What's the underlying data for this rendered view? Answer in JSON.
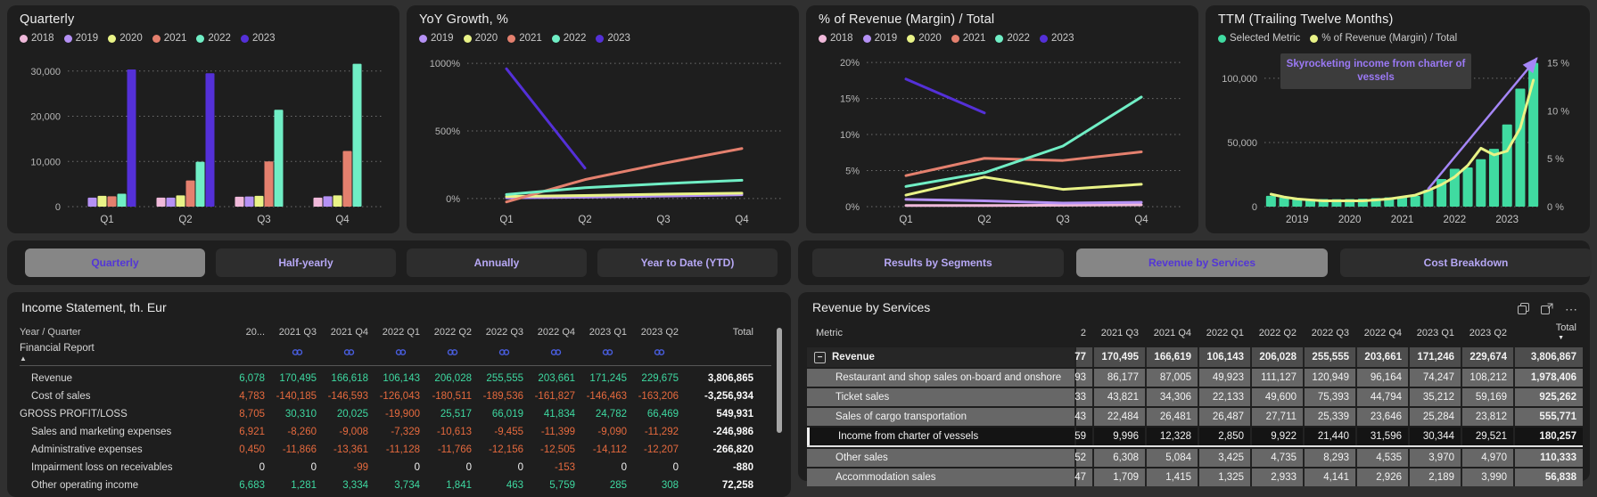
{
  "charts": {
    "quarterly": {
      "title": "Quarterly",
      "type": "grouped-bar",
      "categories": [
        "Q1",
        "Q2",
        "Q3",
        "Q4"
      ],
      "ymin": 0,
      "ymax": 33500,
      "yticks": [
        {
          "v": 0,
          "label": "0"
        },
        {
          "v": 10000,
          "label": "10,000"
        },
        {
          "v": 20000,
          "label": "20,000"
        },
        {
          "v": 30000,
          "label": "30,000"
        }
      ],
      "series": [
        {
          "name": "2018",
          "color": "#f0b9da",
          "values": [
            null,
            2000,
            2200,
            2000
          ]
        },
        {
          "name": "2019",
          "color": "#b591f5",
          "values": [
            2000,
            2000,
            2250,
            2300
          ]
        },
        {
          "name": "2020",
          "color": "#e9f387",
          "values": [
            2400,
            2500,
            2400,
            2500
          ]
        },
        {
          "name": "2021",
          "color": "#e4806e",
          "values": [
            2300,
            5800,
            9996,
            12328
          ]
        },
        {
          "name": "2022",
          "color": "#70eec5",
          "values": [
            2850,
            9922,
            21440,
            31596
          ]
        },
        {
          "name": "2023",
          "color": "#5430d8",
          "values": [
            30344,
            29521,
            null,
            null
          ]
        }
      ]
    },
    "yoy": {
      "title": "YoY Growth, %",
      "type": "line",
      "categories": [
        "Q1",
        "Q2",
        "Q3",
        "Q4"
      ],
      "ymin": -60,
      "ymax": 1060,
      "yticks": [
        {
          "v": 0,
          "label": "0%"
        },
        {
          "v": 500,
          "label": "500%"
        },
        {
          "v": 1000,
          "label": "1000%"
        }
      ],
      "series": [
        {
          "name": "2019",
          "color": "#b591f5",
          "values": [
            5,
            10,
            18,
            28
          ]
        },
        {
          "name": "2020",
          "color": "#e9f387",
          "values": [
            15,
            22,
            32,
            40
          ]
        },
        {
          "name": "2021",
          "color": "#e4806e",
          "values": [
            -25,
            140,
            260,
            370
          ]
        },
        {
          "name": "2022",
          "color": "#70eec5",
          "values": [
            30,
            80,
            110,
            135
          ]
        },
        {
          "name": "2023",
          "color": "#5430d8",
          "values": [
            960,
            225,
            null,
            null
          ]
        }
      ]
    },
    "margin": {
      "title": "% of Revenue (Margin) / Total",
      "type": "line",
      "categories": [
        "Q1",
        "Q2",
        "Q3",
        "Q4"
      ],
      "ymin": 0,
      "ymax": 21,
      "yticks": [
        {
          "v": 0,
          "label": "0%"
        },
        {
          "v": 5,
          "label": "5%"
        },
        {
          "v": 10,
          "label": "10%"
        },
        {
          "v": 15,
          "label": "15%"
        },
        {
          "v": 20,
          "label": "20%"
        }
      ],
      "series": [
        {
          "name": "2018",
          "color": "#f0b9da",
          "values": [
            0.15,
            0.15,
            0.2,
            0.25
          ]
        },
        {
          "name": "2019",
          "color": "#b591f5",
          "values": [
            1.0,
            0.8,
            0.5,
            0.6
          ]
        },
        {
          "name": "2020",
          "color": "#e9f387",
          "values": [
            1.6,
            4.1,
            2.4,
            3.1
          ]
        },
        {
          "name": "2021",
          "color": "#e4806e",
          "values": [
            4.3,
            6.7,
            6.4,
            7.6
          ]
        },
        {
          "name": "2022",
          "color": "#70eec5",
          "values": [
            2.8,
            4.7,
            8.4,
            15.2
          ]
        },
        {
          "name": "2023",
          "color": "#5430d8",
          "values": [
            17.7,
            13.0,
            null,
            null
          ]
        }
      ]
    },
    "ttm": {
      "title": "TTM (Trailing Twelve Months)",
      "type": "bar-line",
      "legend": [
        {
          "name": "Selected Metric",
          "color": "#40dba1"
        },
        {
          "name": "% of Revenue (Margin) / Total",
          "color": "#e9f387"
        }
      ],
      "ymax": 118000,
      "rmax": 15.8,
      "left_ticks": [
        {
          "v": 0,
          "label": "0"
        },
        {
          "v": 50000,
          "label": "50,000"
        },
        {
          "v": 100000,
          "label": "100,000"
        }
      ],
      "right_ticks": [
        {
          "v": 0,
          "label": "0 %"
        },
        {
          "v": 5,
          "label": "5 %"
        },
        {
          "v": 10,
          "label": "10 %"
        },
        {
          "v": 15,
          "label": "15 %"
        }
      ],
      "bar_color": "#40dba1",
      "line_color": "#e9f387",
      "bars": [
        8400,
        7000,
        6300,
        6000,
        5900,
        5800,
        5900,
        6200,
        6700,
        7200,
        7800,
        8300,
        13000,
        21500,
        29500,
        30500,
        37000,
        45000,
        64000,
        92000,
        112000
      ],
      "line": [
        1.3,
        1.0,
        0.8,
        0.7,
        0.6,
        0.6,
        0.6,
        0.6,
        0.7,
        0.8,
        1.0,
        1.2,
        1.7,
        2.3,
        3.1,
        4.3,
        6.1,
        5.4,
        5.8,
        8.2,
        13.2
      ],
      "year_labels": [
        {
          "label": "2019",
          "bar": 2
        },
        {
          "label": "2020",
          "bar": 6
        },
        {
          "label": "2021",
          "bar": 10
        },
        {
          "label": "2022",
          "bar": 14
        },
        {
          "label": "2023",
          "bar": 18
        }
      ],
      "annotation": {
        "text": "Skyrocketing income from charter of vessels"
      },
      "arrow": {
        "color": "#a586f7",
        "from_bar": 12,
        "from_value": 14000
      }
    }
  },
  "toolbars": {
    "left_tabs": [
      {
        "label": "Quarterly",
        "active": true
      },
      {
        "label": "Half-yearly",
        "active": false
      },
      {
        "label": "Annually",
        "active": false
      },
      {
        "label": "Year to Date (YTD)",
        "active": false
      }
    ],
    "right_tabs": [
      {
        "label": "Results by Segments",
        "active": false
      },
      {
        "label": "Revenue by Services",
        "active": true
      },
      {
        "label": "Cost Breakdown",
        "active": false
      }
    ]
  },
  "income_statement": {
    "title": "Income Statement, th. Eur",
    "row_header": "Year / Quarter",
    "columns": [
      "20...",
      "2021 Q3",
      "2021 Q4",
      "2022 Q1",
      "2022 Q2",
      "2022 Q3",
      "2022 Q4",
      "2023 Q1",
      "2023 Q2",
      "Total"
    ],
    "group_row": {
      "label": "Financial Report",
      "sort_indicator": "▲"
    },
    "rows": [
      {
        "label": "Revenue",
        "indent": true,
        "first_negative": false,
        "values": [
          "6,078",
          "170,495",
          "166,618",
          "106,143",
          "206,028",
          "255,555",
          "203,661",
          "171,245",
          "229,675",
          "3,806,865"
        ]
      },
      {
        "label": "Cost of sales",
        "indent": true,
        "first_negative": true,
        "values": [
          "4,783",
          "-140,185",
          "-146,593",
          "-126,043",
          "-180,511",
          "-189,536",
          "-161,827",
          "-146,463",
          "-163,206",
          "-3,256,934"
        ]
      },
      {
        "label": "GROSS PROFIT/LOSS",
        "indent": false,
        "first_negative": true,
        "values": [
          "8,705",
          "30,310",
          "20,025",
          "-19,900",
          "25,517",
          "66,019",
          "41,834",
          "24,782",
          "66,469",
          "549,931"
        ]
      },
      {
        "label": "Sales and marketing expenses",
        "indent": true,
        "first_negative": true,
        "values": [
          "6,921",
          "-8,260",
          "-9,008",
          "-7,329",
          "-10,613",
          "-9,455",
          "-11,399",
          "-9,090",
          "-11,292",
          "-246,986"
        ]
      },
      {
        "label": "Administrative expenses",
        "indent": true,
        "first_negative": true,
        "values": [
          "0,450",
          "-11,866",
          "-13,361",
          "-11,128",
          "-11,766",
          "-12,156",
          "-12,505",
          "-14,112",
          "-12,207",
          "-266,820"
        ]
      },
      {
        "label": "Impairment loss on receivables",
        "indent": true,
        "first_negative": false,
        "values": [
          "0",
          "0",
          "-99",
          "0",
          "0",
          "0",
          "-153",
          "0",
          "0",
          "-880"
        ]
      },
      {
        "label": "Other operating income",
        "indent": true,
        "first_negative": false,
        "values": [
          "6,683",
          "1,281",
          "3,334",
          "3,734",
          "1,841",
          "463",
          "5,759",
          "285",
          "308",
          "72,258"
        ]
      }
    ]
  },
  "revenue_by_services": {
    "title": "Revenue by Services",
    "row_header": "Metric",
    "columns": [
      "2",
      "2021 Q3",
      "2021 Q4",
      "2022 Q1",
      "2022 Q2",
      "2022 Q3",
      "2022 Q4",
      "2023 Q1",
      "2023 Q2",
      "Total"
    ],
    "total_sort_indicator": "▼",
    "rows": [
      {
        "label": "Revenue",
        "type": "parent",
        "selected": false,
        "values": [
          "77",
          "170,495",
          "166,619",
          "106,143",
          "206,028",
          "255,555",
          "203,661",
          "171,246",
          "229,674",
          "3,806,867"
        ]
      },
      {
        "label": "Restaurant and shop sales on-board and onshore",
        "type": "sub",
        "selected": false,
        "values": [
          "93",
          "86,177",
          "87,005",
          "49,923",
          "111,127",
          "120,949",
          "96,164",
          "74,247",
          "108,212",
          "1,978,406"
        ]
      },
      {
        "label": "Ticket sales",
        "type": "sub",
        "selected": false,
        "values": [
          "33",
          "43,821",
          "34,306",
          "22,133",
          "49,600",
          "75,393",
          "44,794",
          "35,212",
          "59,169",
          "925,262"
        ]
      },
      {
        "label": "Sales of cargo transportation",
        "type": "sub",
        "selected": false,
        "values": [
          "43",
          "22,484",
          "26,481",
          "26,487",
          "27,711",
          "25,339",
          "23,646",
          "25,284",
          "23,812",
          "555,771"
        ]
      },
      {
        "label": "Income from charter of vessels",
        "type": "sub",
        "selected": true,
        "values": [
          "59",
          "9,996",
          "12,328",
          "2,850",
          "9,922",
          "21,440",
          "31,596",
          "30,344",
          "29,521",
          "180,257"
        ]
      },
      {
        "label": "Other sales",
        "type": "sub",
        "selected": false,
        "values": [
          "52",
          "6,308",
          "5,084",
          "3,425",
          "4,735",
          "8,293",
          "4,535",
          "3,970",
          "4,970",
          "110,333"
        ]
      },
      {
        "label": "Accommodation sales",
        "type": "sub",
        "selected": false,
        "values": [
          "47",
          "1,709",
          "1,415",
          "1,325",
          "2,933",
          "4,141",
          "2,926",
          "2,189",
          "3,990",
          "56,838"
        ]
      }
    ]
  }
}
